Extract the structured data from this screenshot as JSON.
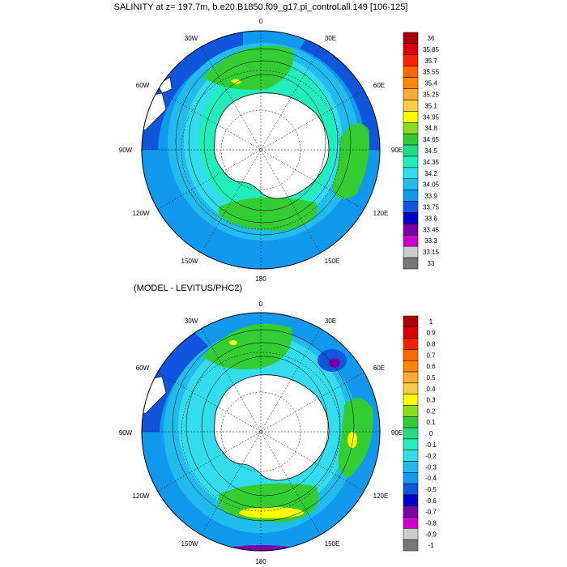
{
  "panels": [
    {
      "title": "SALINITY at z= 197.7m, b.e20.B1850.f09_g17.pi_control.all.149 [106-125]",
      "colorbar_labels": [
        "36",
        "35.85",
        "35.7",
        "35.55",
        "35.4",
        "35.25",
        "35.1",
        "34.95",
        "34.8",
        "34.65",
        "34.5",
        "34.35",
        "34.2",
        "34.05",
        "33.9",
        "33.75",
        "33.6",
        "33.45",
        "33.3",
        "33.15",
        "33"
      ],
      "colorbar_colors": [
        "#aa0000",
        "#dd0000",
        "#ff2200",
        "#ff6600",
        "#ff8800",
        "#ffaa33",
        "#ffcc44",
        "#ffff00",
        "#88dd22",
        "#33cc33",
        "#22dd88",
        "#22eebb",
        "#33ddee",
        "#22bbee",
        "#1199ee",
        "#1155dd",
        "#0000cc",
        "#7700aa",
        "#cc00cc",
        "#cccccc",
        "#777777"
      ]
    },
    {
      "title": "(MODEL - LEVITUS/PHC2)",
      "colorbar_labels": [
        "1",
        "0.9",
        "0.8",
        "0.7",
        "0.6",
        "0.5",
        "0.4",
        "0.3",
        "0.2",
        "0.1",
        "0",
        "-0.1",
        "-0.2",
        "-0.3",
        "-0.4",
        "-0.5",
        "-0.6",
        "-0.7",
        "-0.8",
        "-0.9",
        "-1"
      ],
      "colorbar_colors": [
        "#aa0000",
        "#dd0000",
        "#ff2200",
        "#ff6600",
        "#ff8800",
        "#ffaa33",
        "#ffcc44",
        "#ffff00",
        "#88dd22",
        "#33cc33",
        "#22dd88",
        "#22eebb",
        "#33ddee",
        "#22bbee",
        "#1199ee",
        "#1155dd",
        "#0000cc",
        "#7700aa",
        "#cc00cc",
        "#cccccc",
        "#777777"
      ]
    }
  ],
  "lon_labels": [
    "0",
    "30E",
    "60E",
    "90E",
    "120E",
    "150E",
    "180",
    "150W",
    "120W",
    "90W",
    "60W",
    "30W"
  ],
  "colors": {
    "ocean_fill": "#22ccee",
    "land": "#ffffff",
    "outline": "#000000"
  }
}
